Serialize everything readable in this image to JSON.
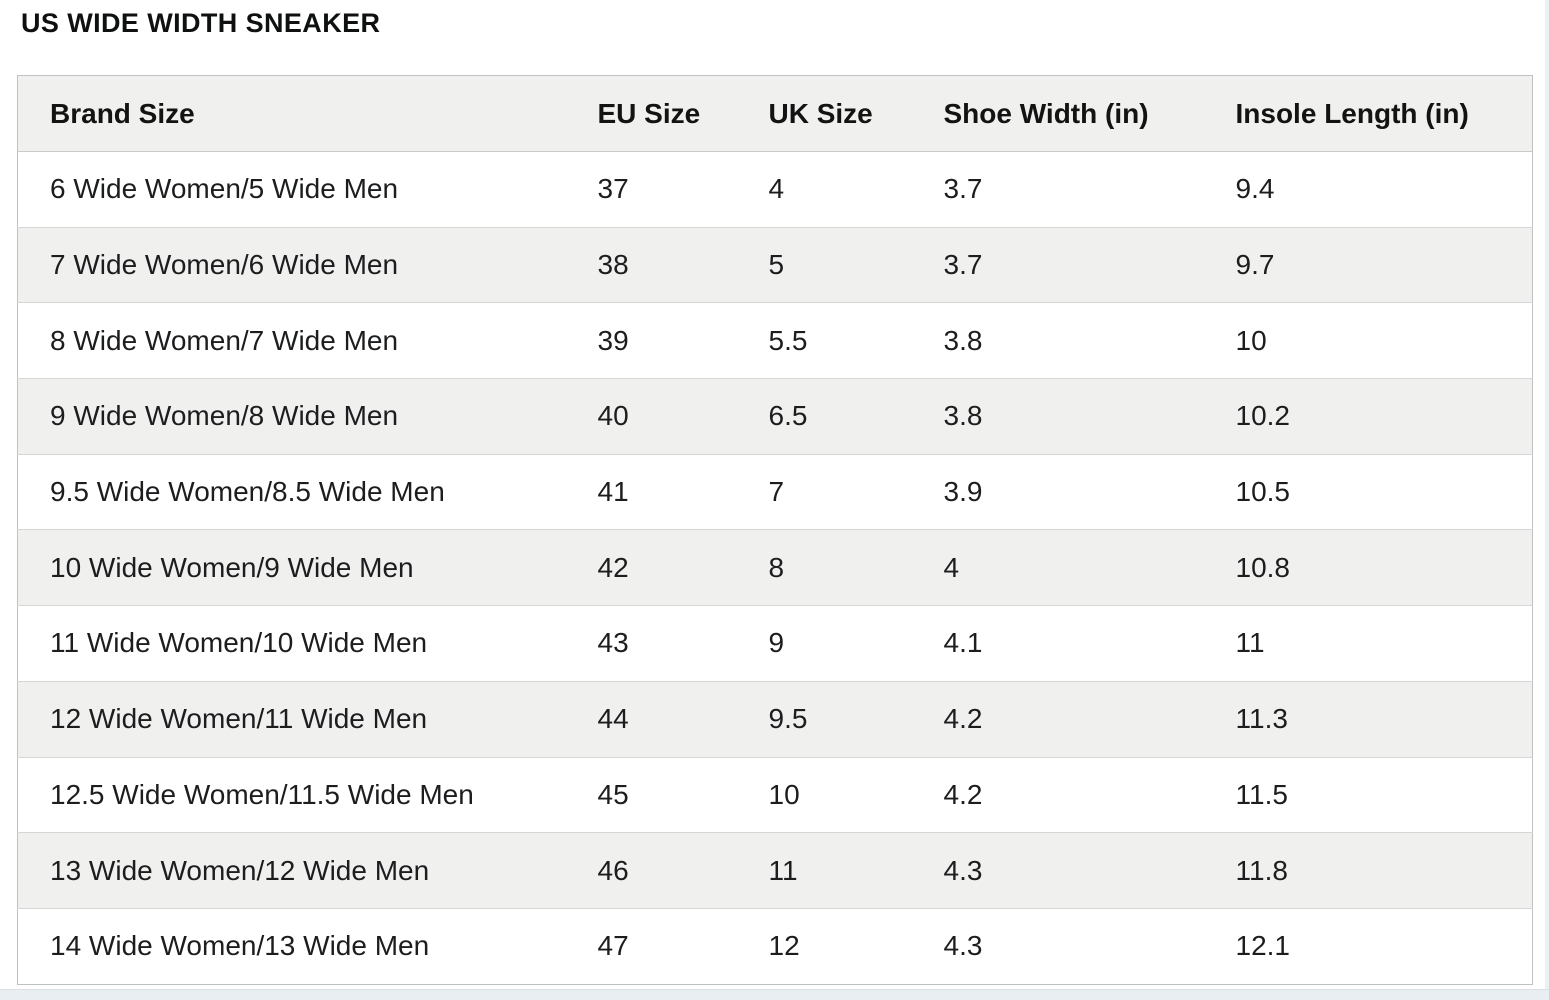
{
  "page": {
    "title": "US WIDE WIDTH SNEAKER"
  },
  "chart_data": {
    "type": "table",
    "title": "US WIDE WIDTH SNEAKER",
    "columns": [
      "Brand Size",
      "EU Size",
      "UK Size",
      "Shoe Width (in)",
      "Insole Length (in)"
    ],
    "rows": [
      [
        "6 Wide Women/5 Wide Men",
        "37",
        "4",
        "3.7",
        "9.4"
      ],
      [
        "7 Wide Women/6 Wide Men",
        "38",
        "5",
        "3.7",
        "9.7"
      ],
      [
        "8 Wide Women/7 Wide Men",
        "39",
        "5.5",
        "3.8",
        "10"
      ],
      [
        "9 Wide Women/8 Wide Men",
        "40",
        "6.5",
        "3.8",
        "10.2"
      ],
      [
        "9.5 Wide Women/8.5 Wide Men",
        "41",
        "7",
        "3.9",
        "10.5"
      ],
      [
        "10 Wide Women/9 Wide Men",
        "42",
        "8",
        "4",
        "10.8"
      ],
      [
        "11 Wide Women/10 Wide Men",
        "43",
        "9",
        "4.1",
        "11"
      ],
      [
        "12 Wide Women/11 Wide Men",
        "44",
        "9.5",
        "4.2",
        "11.3"
      ],
      [
        "12.5 Wide Women/11.5 Wide Men",
        "45",
        "10",
        "4.2",
        "11.5"
      ],
      [
        "13 Wide Women/12 Wide Men",
        "46",
        "11",
        "4.3",
        "11.8"
      ],
      [
        "14 Wide Women/13 Wide Men",
        "47",
        "12",
        "4.3",
        "12.1"
      ]
    ],
    "layout": {
      "stripe_rows": "even rows shaded",
      "grid": "horizontal lines only"
    }
  },
  "colors": {
    "header_bg": "#f0f0ee",
    "stripe_bg": "#f0f0ee",
    "table_border": "#bfc2c2",
    "row_line": "#d5d7d7",
    "text": "#1c1d1f",
    "title_text": "#0f1111",
    "bottom_strip": "#e9eef2"
  }
}
